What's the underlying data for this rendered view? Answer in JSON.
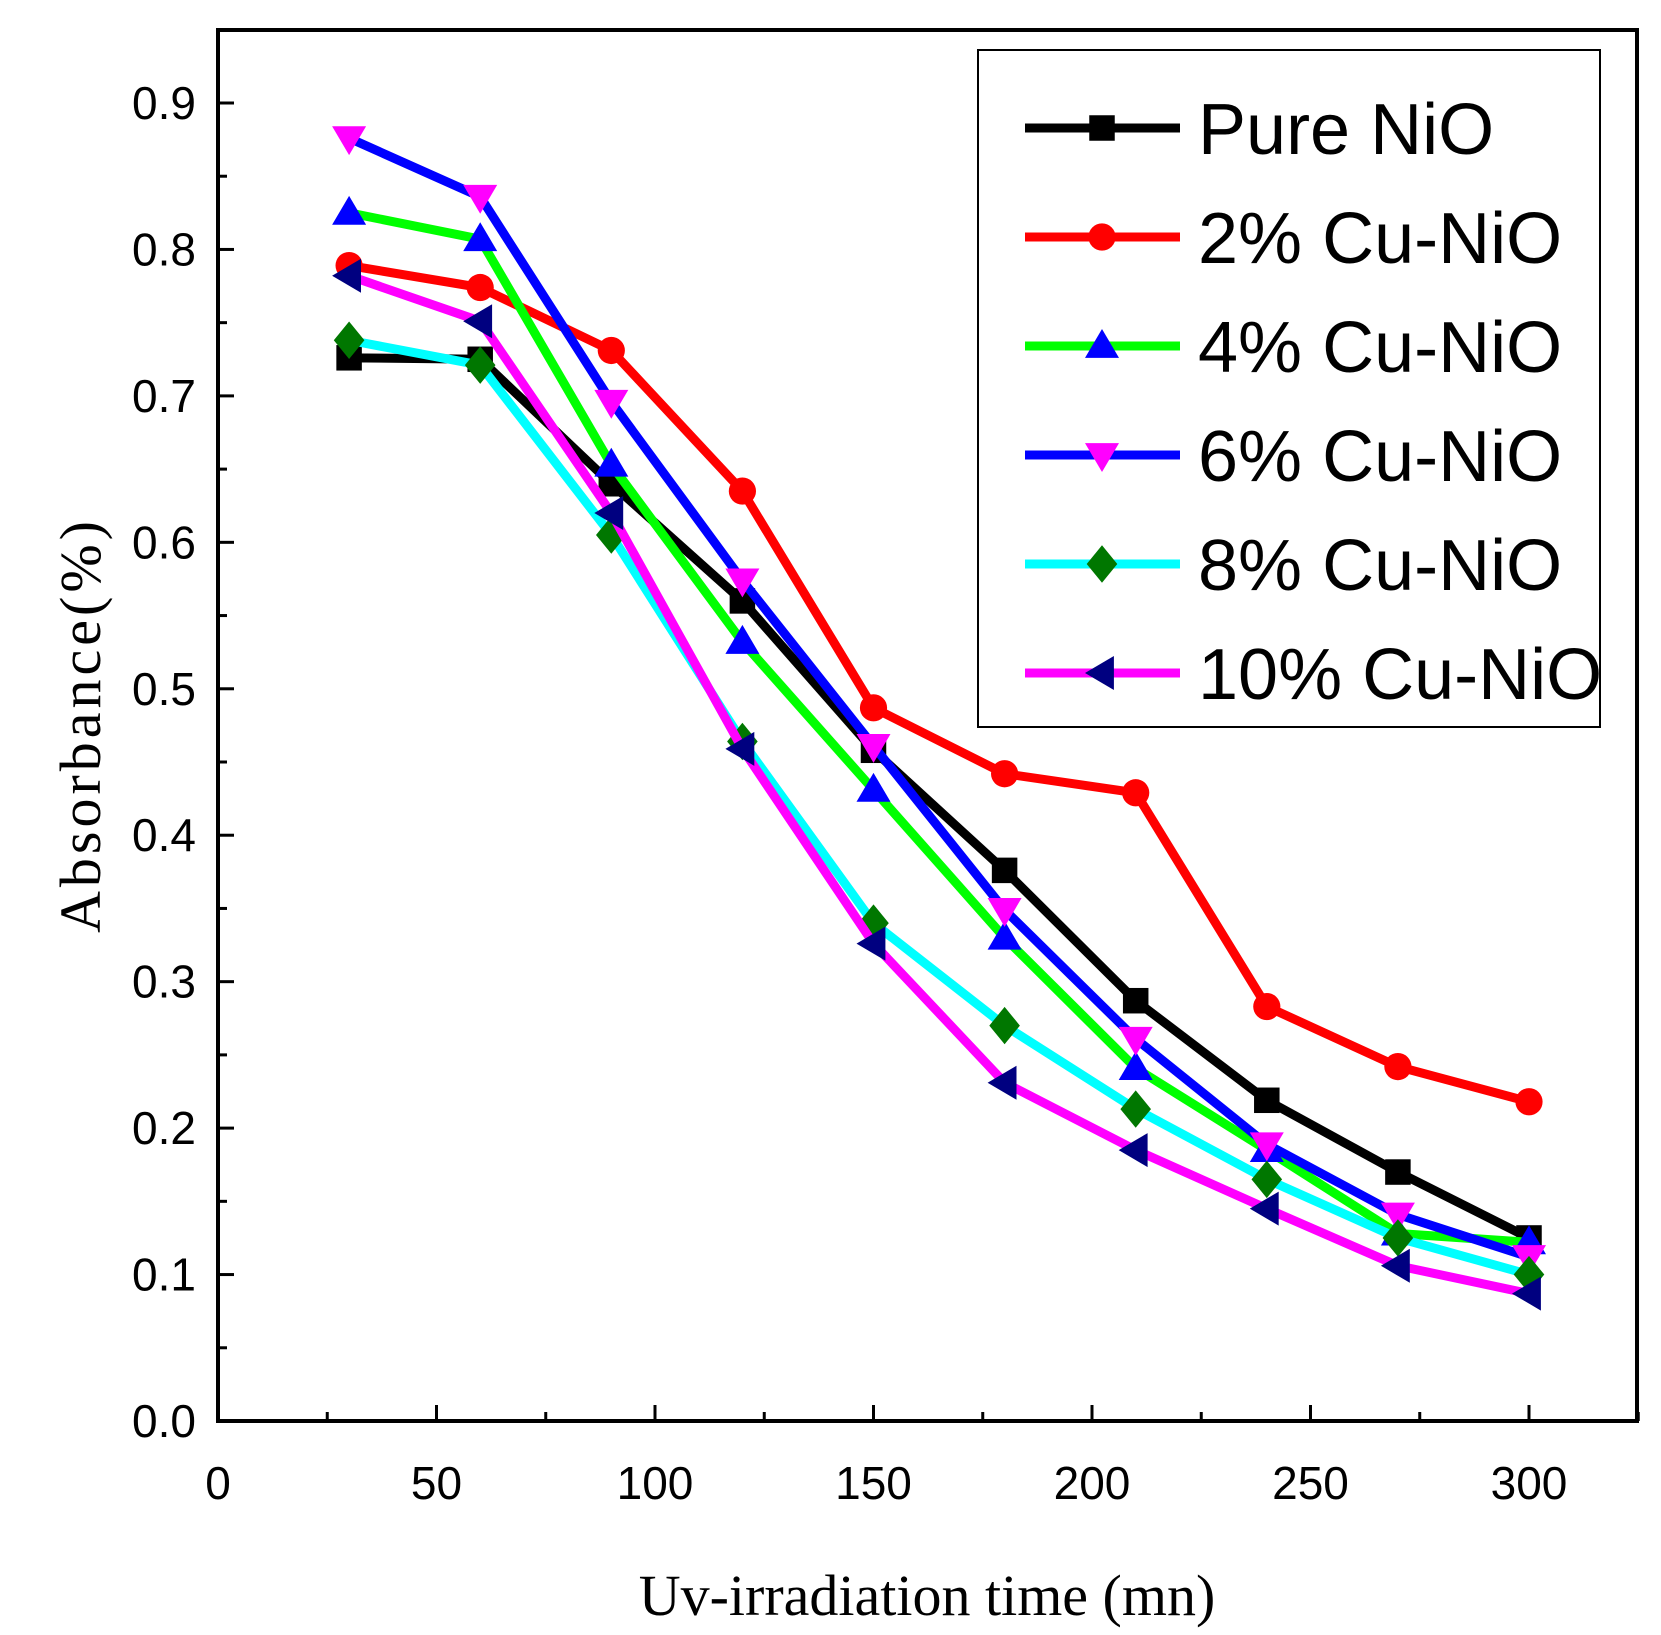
{
  "chart_data": {
    "type": "line",
    "title": "",
    "xlabel": "Uv-irradiation time (mn)",
    "ylabel": "Absorbance(%)",
    "xlim": [
      0,
      325
    ],
    "ylim": [
      0,
      0.95
    ],
    "xticks": [
      "0",
      "50",
      "100",
      "150",
      "200",
      "250",
      "300"
    ],
    "yticks": [
      "0.0",
      "0.1",
      "0.2",
      "0.3",
      "0.4",
      "0.5",
      "0.6",
      "0.7",
      "0.8",
      "0.9"
    ],
    "legend_position": "top-right",
    "grid": false,
    "x": [
      30,
      60,
      90,
      120,
      150,
      180,
      210,
      240,
      270,
      300
    ],
    "series": [
      {
        "name": "Pure NiO",
        "color": "#000000",
        "marker": "square",
        "marker_color": "#000000",
        "values": [
          0.726,
          0.725,
          0.64,
          0.56,
          0.458,
          0.376,
          0.287,
          0.219,
          0.17,
          0.125
        ]
      },
      {
        "name": "2% Cu-NiO",
        "color": "#ff0000",
        "marker": "circle",
        "marker_color": "#ff0000",
        "values": [
          0.789,
          0.774,
          0.731,
          0.635,
          0.487,
          0.442,
          0.429,
          0.283,
          0.242,
          0.218
        ]
      },
      {
        "name": "4% Cu-NiO",
        "color": "#00ff00",
        "marker": "triangle-up",
        "marker_color": "#0000ff",
        "values": [
          0.825,
          0.807,
          0.653,
          0.532,
          0.431,
          0.33,
          0.241,
          0.185,
          0.128,
          0.122
        ]
      },
      {
        "name": "6% Cu-NiO",
        "color": "#0000ff",
        "marker": "triangle-down",
        "marker_color": "#ff00ff",
        "values": [
          0.876,
          0.836,
          0.696,
          0.574,
          0.461,
          0.349,
          0.261,
          0.189,
          0.141,
          0.112
        ]
      },
      {
        "name": "8% Cu-NiO",
        "color": "#00ffff",
        "marker": "diamond",
        "marker_color": "#007700",
        "values": [
          0.738,
          0.721,
          0.605,
          0.464,
          0.34,
          0.27,
          0.213,
          0.165,
          0.125,
          0.1
        ]
      },
      {
        "name": "10% Cu-NiO",
        "color": "#ff00ff",
        "marker": "triangle-left",
        "marker_color": "#000080",
        "values": [
          0.782,
          0.751,
          0.62,
          0.459,
          0.326,
          0.231,
          0.185,
          0.145,
          0.106,
          0.087
        ]
      }
    ]
  }
}
